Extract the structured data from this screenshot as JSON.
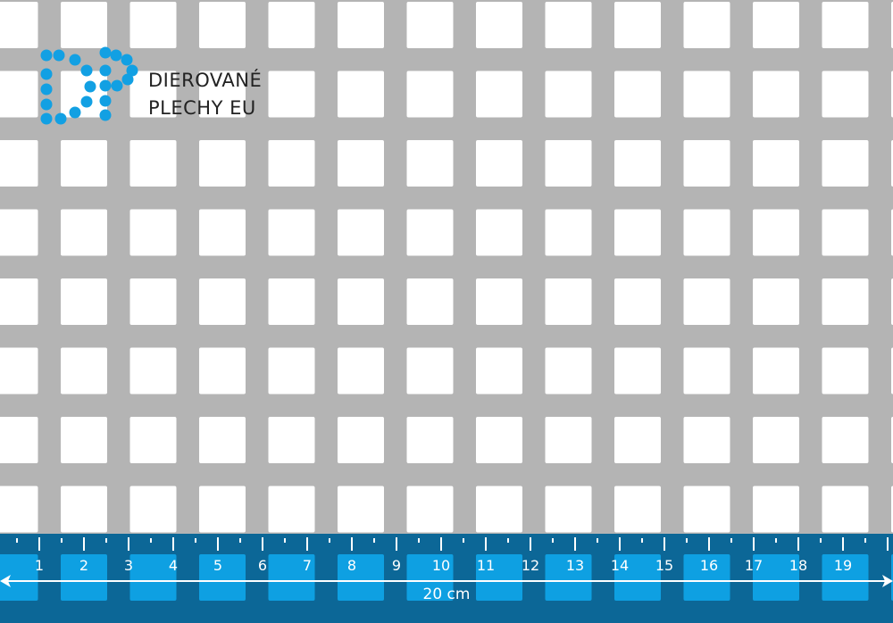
{
  "brand": {
    "logo_monogram": "DP",
    "name_line1": "DIEROVANÉ",
    "name_line2": "PLECHY EU",
    "dot_color": "#12a0e3"
  },
  "sheet": {
    "material_color": "#b4b4b4",
    "hole_shape": "square",
    "hole_color": "#ffffff"
  },
  "ruler": {
    "band_color": "#0c6797",
    "hole_fill_color": "#0ea0e2",
    "labels": [
      "1",
      "2",
      "3",
      "4",
      "5",
      "6",
      "7",
      "8",
      "9",
      "10",
      "11",
      "12",
      "13",
      "14",
      "15",
      "16",
      "17",
      "18",
      "19"
    ],
    "span_label": "20 cm",
    "arrow_icon": "double-arrow-icon"
  }
}
